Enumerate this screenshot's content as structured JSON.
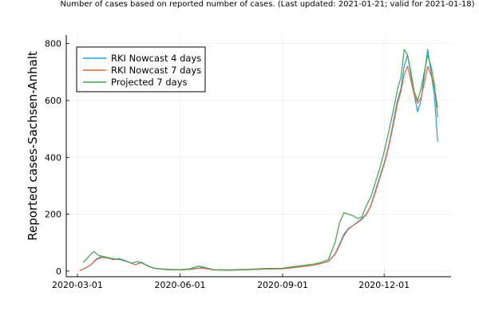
{
  "chart_data": {
    "type": "line",
    "title": "Number of cases based on reported number of cases. (Last updated: 2021-01-21; valid for 2021-01-18)",
    "xlabel": "",
    "ylabel": "Reported cases-Sachsen-Anhalt",
    "xlim": [
      "2020-02-20",
      "2021-01-30"
    ],
    "ylim": [
      -20,
      830
    ],
    "x_ticks": [
      "2020-03-01",
      "2020-06-01",
      "2020-09-01",
      "2020-12-01"
    ],
    "y_ticks": [
      0,
      200,
      400,
      600,
      800
    ],
    "grid": true,
    "legend_position": "top-left",
    "colors": {
      "RKI Nowcast 4 days": "#1fa0dc",
      "RKI Nowcast 7 days": "#e6623d",
      "Projected 7 days": "#3da44d"
    },
    "series": [
      {
        "name": "RKI Nowcast 4 days",
        "points": [
          [
            "2020-03-03",
            2
          ],
          [
            "2020-03-08",
            10
          ],
          [
            "2020-03-13",
            22
          ],
          [
            "2020-03-18",
            42
          ],
          [
            "2020-03-23",
            52
          ],
          [
            "2020-03-28",
            48
          ],
          [
            "2020-04-02",
            40
          ],
          [
            "2020-04-07",
            44
          ],
          [
            "2020-04-12",
            38
          ],
          [
            "2020-04-17",
            30
          ],
          [
            "2020-04-22",
            22
          ],
          [
            "2020-04-27",
            32
          ],
          [
            "2020-05-02",
            20
          ],
          [
            "2020-05-07",
            12
          ],
          [
            "2020-05-12",
            8
          ],
          [
            "2020-05-17",
            6
          ],
          [
            "2020-05-22",
            5
          ],
          [
            "2020-06-01",
            4
          ],
          [
            "2020-06-10",
            6
          ],
          [
            "2020-06-20",
            12
          ],
          [
            "2020-06-25",
            9
          ],
          [
            "2020-07-01",
            4
          ],
          [
            "2020-07-15",
            3
          ],
          [
            "2020-08-01",
            5
          ],
          [
            "2020-08-15",
            7
          ],
          [
            "2020-09-01",
            8
          ],
          [
            "2020-09-10",
            12
          ],
          [
            "2020-09-20",
            16
          ],
          [
            "2020-09-28",
            20
          ],
          [
            "2020-10-05",
            26
          ],
          [
            "2020-10-12",
            34
          ],
          [
            "2020-10-18",
            60
          ],
          [
            "2020-10-22",
            95
          ],
          [
            "2020-10-26",
            130
          ],
          [
            "2020-10-30",
            150
          ],
          [
            "2020-11-03",
            160
          ],
          [
            "2020-11-07",
            172
          ],
          [
            "2020-11-11",
            185
          ],
          [
            "2020-11-15",
            200
          ],
          [
            "2020-11-19",
            230
          ],
          [
            "2020-11-23",
            280
          ],
          [
            "2020-11-27",
            330
          ],
          [
            "2020-12-01",
            380
          ],
          [
            "2020-12-05",
            440
          ],
          [
            "2020-12-09",
            520
          ],
          [
            "2020-12-13",
            600
          ],
          [
            "2020-12-16",
            640
          ],
          [
            "2020-12-19",
            720
          ],
          [
            "2020-12-22",
            760
          ],
          [
            "2020-12-25",
            690
          ],
          [
            "2020-12-28",
            620
          ],
          [
            "2020-12-31",
            560
          ],
          [
            "2021-01-03",
            600
          ],
          [
            "2021-01-06",
            690
          ],
          [
            "2021-01-09",
            780
          ],
          [
            "2021-01-12",
            700
          ],
          [
            "2021-01-15",
            620
          ],
          [
            "2021-01-18",
            455
          ]
        ]
      },
      {
        "name": "RKI Nowcast 7 days",
        "points": [
          [
            "2020-03-03",
            2
          ],
          [
            "2020-03-08",
            10
          ],
          [
            "2020-03-13",
            22
          ],
          [
            "2020-03-18",
            40
          ],
          [
            "2020-03-23",
            48
          ],
          [
            "2020-03-28",
            46
          ],
          [
            "2020-04-02",
            40
          ],
          [
            "2020-04-07",
            42
          ],
          [
            "2020-04-12",
            36
          ],
          [
            "2020-04-17",
            30
          ],
          [
            "2020-04-22",
            22
          ],
          [
            "2020-04-27",
            30
          ],
          [
            "2020-05-02",
            20
          ],
          [
            "2020-05-07",
            12
          ],
          [
            "2020-05-12",
            8
          ],
          [
            "2020-05-17",
            6
          ],
          [
            "2020-05-22",
            5
          ],
          [
            "2020-06-01",
            4
          ],
          [
            "2020-06-10",
            6
          ],
          [
            "2020-06-20",
            10
          ],
          [
            "2020-06-25",
            8
          ],
          [
            "2020-07-01",
            4
          ],
          [
            "2020-07-15",
            3
          ],
          [
            "2020-08-01",
            5
          ],
          [
            "2020-08-15",
            7
          ],
          [
            "2020-09-01",
            8
          ],
          [
            "2020-09-10",
            12
          ],
          [
            "2020-09-20",
            16
          ],
          [
            "2020-09-28",
            20
          ],
          [
            "2020-10-05",
            26
          ],
          [
            "2020-10-12",
            34
          ],
          [
            "2020-10-18",
            58
          ],
          [
            "2020-10-22",
            90
          ],
          [
            "2020-10-26",
            125
          ],
          [
            "2020-10-30",
            148
          ],
          [
            "2020-11-03",
            160
          ],
          [
            "2020-11-07",
            170
          ],
          [
            "2020-11-11",
            182
          ],
          [
            "2020-11-15",
            198
          ],
          [
            "2020-11-19",
            228
          ],
          [
            "2020-11-23",
            275
          ],
          [
            "2020-11-27",
            325
          ],
          [
            "2020-12-01",
            375
          ],
          [
            "2020-12-05",
            435
          ],
          [
            "2020-12-09",
            510
          ],
          [
            "2020-12-13",
            590
          ],
          [
            "2020-12-16",
            630
          ],
          [
            "2020-12-19",
            690
          ],
          [
            "2020-12-22",
            720
          ],
          [
            "2020-12-25",
            670
          ],
          [
            "2020-12-28",
            620
          ],
          [
            "2020-12-31",
            590
          ],
          [
            "2021-01-03",
            610
          ],
          [
            "2021-01-06",
            660
          ],
          [
            "2021-01-09",
            720
          ],
          [
            "2021-01-12",
            690
          ],
          [
            "2021-01-15",
            650
          ],
          [
            "2021-01-18",
            575
          ]
        ]
      },
      {
        "name": "Projected 7 days",
        "points": [
          [
            "2020-03-06",
            30
          ],
          [
            "2020-03-10",
            45
          ],
          [
            "2020-03-13",
            60
          ],
          [
            "2020-03-16",
            68
          ],
          [
            "2020-03-20",
            55
          ],
          [
            "2020-03-25",
            50
          ],
          [
            "2020-03-30",
            46
          ],
          [
            "2020-04-04",
            42
          ],
          [
            "2020-04-09",
            40
          ],
          [
            "2020-04-14",
            34
          ],
          [
            "2020-04-19",
            28
          ],
          [
            "2020-04-24",
            34
          ],
          [
            "2020-04-29",
            26
          ],
          [
            "2020-05-04",
            16
          ],
          [
            "2020-05-09",
            10
          ],
          [
            "2020-05-14",
            8
          ],
          [
            "2020-05-22",
            6
          ],
          [
            "2020-06-01",
            5
          ],
          [
            "2020-06-10",
            8
          ],
          [
            "2020-06-18",
            18
          ],
          [
            "2020-06-24",
            12
          ],
          [
            "2020-07-01",
            5
          ],
          [
            "2020-07-15",
            4
          ],
          [
            "2020-08-01",
            6
          ],
          [
            "2020-08-15",
            9
          ],
          [
            "2020-09-01",
            10
          ],
          [
            "2020-09-10",
            15
          ],
          [
            "2020-09-20",
            20
          ],
          [
            "2020-09-28",
            24
          ],
          [
            "2020-10-05",
            30
          ],
          [
            "2020-10-12",
            40
          ],
          [
            "2020-10-18",
            100
          ],
          [
            "2020-10-22",
            170
          ],
          [
            "2020-10-26",
            205
          ],
          [
            "2020-10-30",
            200
          ],
          [
            "2020-11-03",
            195
          ],
          [
            "2020-11-07",
            185
          ],
          [
            "2020-11-11",
            190
          ],
          [
            "2020-11-15",
            230
          ],
          [
            "2020-11-19",
            260
          ],
          [
            "2020-11-23",
            310
          ],
          [
            "2020-11-27",
            360
          ],
          [
            "2020-12-01",
            420
          ],
          [
            "2020-12-05",
            490
          ],
          [
            "2020-12-09",
            560
          ],
          [
            "2020-12-13",
            640
          ],
          [
            "2020-12-16",
            680
          ],
          [
            "2020-12-19",
            780
          ],
          [
            "2020-12-22",
            760
          ],
          [
            "2020-12-25",
            700
          ],
          [
            "2020-12-28",
            630
          ],
          [
            "2020-12-31",
            600
          ],
          [
            "2021-01-03",
            640
          ],
          [
            "2021-01-06",
            700
          ],
          [
            "2021-01-09",
            760
          ],
          [
            "2021-01-12",
            720
          ],
          [
            "2021-01-15",
            660
          ],
          [
            "2021-01-18",
            540
          ]
        ]
      }
    ]
  }
}
